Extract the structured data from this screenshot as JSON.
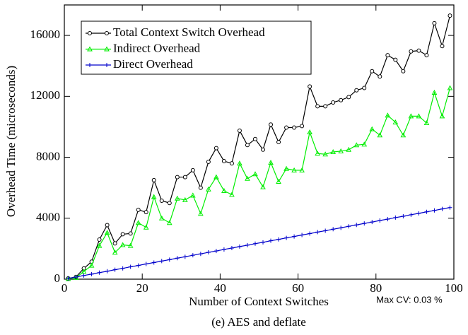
{
  "chart_data": {
    "type": "line",
    "title": "(e) AES and deflate",
    "xlabel": "Number of Context Switches",
    "ylabel": "Overhead Time (microseconds)",
    "annotation": "Max CV: 0.03 %",
    "x": [
      1,
      3,
      5,
      7,
      9,
      11,
      13,
      15,
      17,
      19,
      21,
      23,
      25,
      27,
      29,
      31,
      33,
      35,
      37,
      39,
      41,
      43,
      45,
      47,
      49,
      51,
      53,
      55,
      57,
      59,
      61,
      63,
      65,
      67,
      69,
      71,
      73,
      75,
      77,
      79,
      81,
      83,
      85,
      87,
      89,
      91,
      93,
      95,
      97,
      99
    ],
    "series": [
      {
        "name": "Total Context Switch Overhead",
        "color": "#000000",
        "marker": "circle",
        "values": [
          50,
          150,
          700,
          1150,
          2600,
          3550,
          2350,
          2950,
          3000,
          4550,
          4400,
          6500,
          5150,
          5000,
          6700,
          6700,
          7150,
          6000,
          7700,
          8600,
          7750,
          7600,
          9750,
          8800,
          9200,
          8500,
          10150,
          9000,
          9950,
          9950,
          10050,
          12650,
          11350,
          11350,
          11600,
          11750,
          11950,
          12400,
          12550,
          13650,
          13300,
          14700,
          14400,
          13650,
          14950,
          15000,
          14700,
          16800,
          15300,
          17300
        ]
      },
      {
        "name": "Indirect Overhead",
        "color": "#00ee00",
        "marker": "triangle",
        "values": [
          20,
          100,
          500,
          900,
          2200,
          3050,
          1750,
          2250,
          2200,
          3700,
          3400,
          5400,
          4000,
          3700,
          5300,
          5200,
          5500,
          4300,
          5900,
          6700,
          5800,
          5550,
          7600,
          6600,
          6900,
          6050,
          7650,
          6400,
          7250,
          7150,
          7150,
          9650,
          8250,
          8200,
          8350,
          8400,
          8500,
          8800,
          8850,
          9850,
          9450,
          10750,
          10300,
          9450,
          10700,
          10700,
          10250,
          12250,
          10700,
          12550
        ]
      },
      {
        "name": "Direct Overhead",
        "color": "#0000cc",
        "marker": "plus",
        "values": [
          50,
          140,
          240,
          330,
          430,
          520,
          620,
          710,
          810,
          900,
          1000,
          1090,
          1190,
          1280,
          1380,
          1470,
          1570,
          1660,
          1760,
          1850,
          1950,
          2040,
          2140,
          2230,
          2330,
          2420,
          2520,
          2610,
          2710,
          2800,
          2900,
          2990,
          3090,
          3180,
          3280,
          3370,
          3470,
          3560,
          3660,
          3750,
          3850,
          3940,
          4040,
          4130,
          4230,
          4320,
          4420,
          4510,
          4610,
          4700
        ]
      }
    ],
    "xlim": [
      0,
      100
    ],
    "xticks": [
      0,
      20,
      40,
      60,
      80,
      100
    ],
    "ylim": [
      0,
      18000
    ],
    "yticks": [
      0,
      4000,
      8000,
      12000,
      16000
    ],
    "legend": "upper left"
  }
}
